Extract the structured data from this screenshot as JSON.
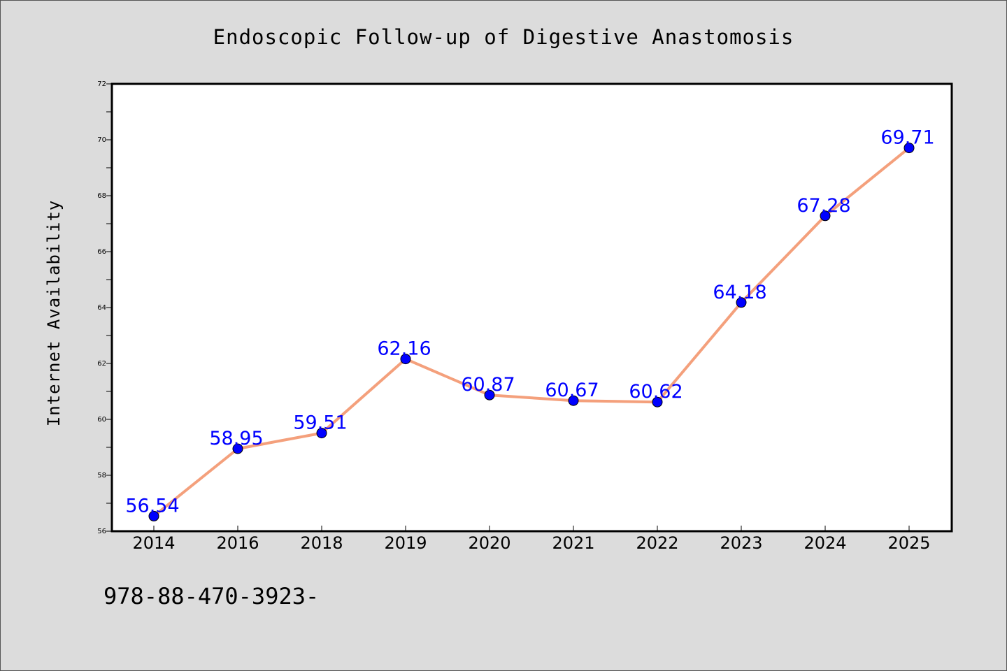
{
  "chart_data": {
    "type": "line",
    "title": "Endoscopic Follow-up of Digestive Anastomosis",
    "xlabel": "",
    "ylabel": "Internet Availability",
    "categories": [
      "2014",
      "2016",
      "2018",
      "2019",
      "2020",
      "2021",
      "2022",
      "2023",
      "2024",
      "2025"
    ],
    "series": [
      {
        "values": [
          56.54,
          58.95,
          59.51,
          62.16,
          60.87,
          60.67,
          60.62,
          64.18,
          67.28,
          69.71
        ],
        "data_labels": [
          "56.54",
          "58.95",
          "59.51",
          "62.16",
          "60.87",
          "60.67",
          "60.62",
          "64.18",
          "67.28",
          "69.71"
        ]
      }
    ],
    "ylim": [
      56,
      72
    ],
    "yticks": [
      "56",
      "58",
      "60",
      "62",
      "64",
      "66",
      "68",
      "70",
      "72"
    ],
    "grid": false,
    "legend": "none",
    "colors": {
      "line": "#f4a07c",
      "marker": "#0000ff",
      "data_label": "#0000ff",
      "background": "#dcdcdc",
      "plot_background": "#ffffff"
    }
  },
  "footer": {
    "text": "978-88-470-3923-"
  }
}
